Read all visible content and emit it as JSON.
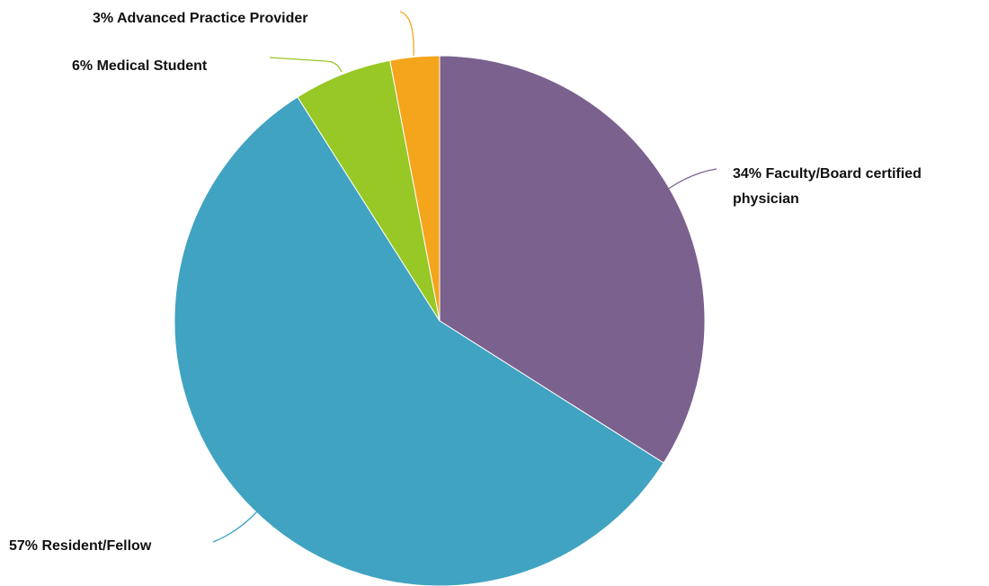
{
  "chart_data": {
    "type": "pie",
    "slices": [
      {
        "label": "34% Faculty/Board certified physician",
        "value": 34,
        "color": "#7b618e"
      },
      {
        "label": "57% Resident/Fellow",
        "value": 57,
        "color": "#40a3c2"
      },
      {
        "label": "6% Medical Student",
        "value": 6,
        "color": "#97c825"
      },
      {
        "label": "3% Advanced Practice Provider",
        "value": 3,
        "color": "#f4a51c"
      }
    ],
    "start": "12 o'clock",
    "direction": "clockwise",
    "legend": "none"
  }
}
